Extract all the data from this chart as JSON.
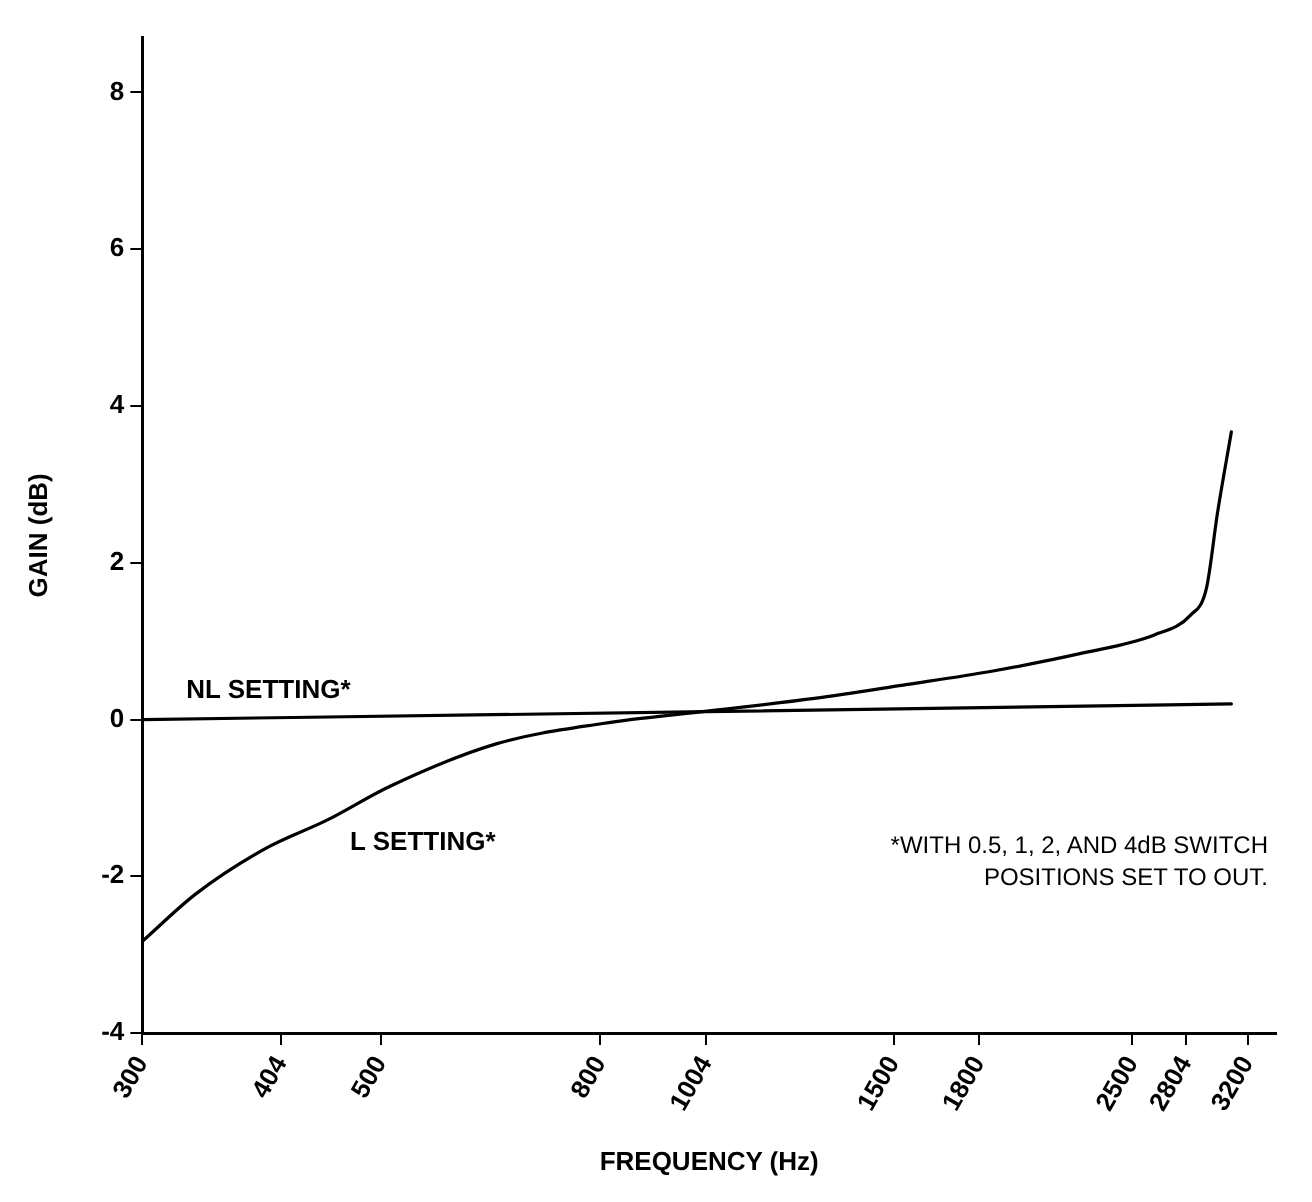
{
  "chart_data": {
    "type": "line",
    "xlabel": "FREQUENCY (Hz)",
    "ylabel": "GAIN (dB)",
    "log": "x",
    "xlim": [
      300,
      3400
    ],
    "xticks": [
      300,
      404,
      500,
      800,
      1004,
      1500,
      1800,
      2500,
      2804,
      3200
    ],
    "ylim": [
      -4,
      8.7
    ],
    "yticks": [
      -4,
      -2,
      0,
      2,
      4,
      6,
      8
    ],
    "grid": false,
    "legend": false,
    "marker": "none",
    "line_style": "solid",
    "series": [
      {
        "name": "NL SETTING*",
        "color": "#000000",
        "x": [
          300,
          1004,
          3090
        ],
        "values": [
          0,
          0.1,
          0.2
        ]
      },
      {
        "name": "L SETTING*",
        "color": "#000000",
        "x": [
          300,
          336,
          390,
          446,
          510,
          640,
          804,
          1010,
          1265,
          1530,
          1855,
          2250,
          2620,
          2830,
          2930,
          3000,
          3090
        ],
        "values": [
          -2.83,
          -2.23,
          -1.65,
          -1.28,
          -0.85,
          -0.31,
          -0.05,
          0.11,
          0.27,
          0.44,
          0.62,
          0.85,
          1.08,
          1.33,
          1.68,
          2.64,
          3.67
        ]
      }
    ],
    "annotations": [
      "*WITH 0.5, 1, 2, AND 4dB SWITCH POSITIONS SET TO OUT."
    ]
  }
}
